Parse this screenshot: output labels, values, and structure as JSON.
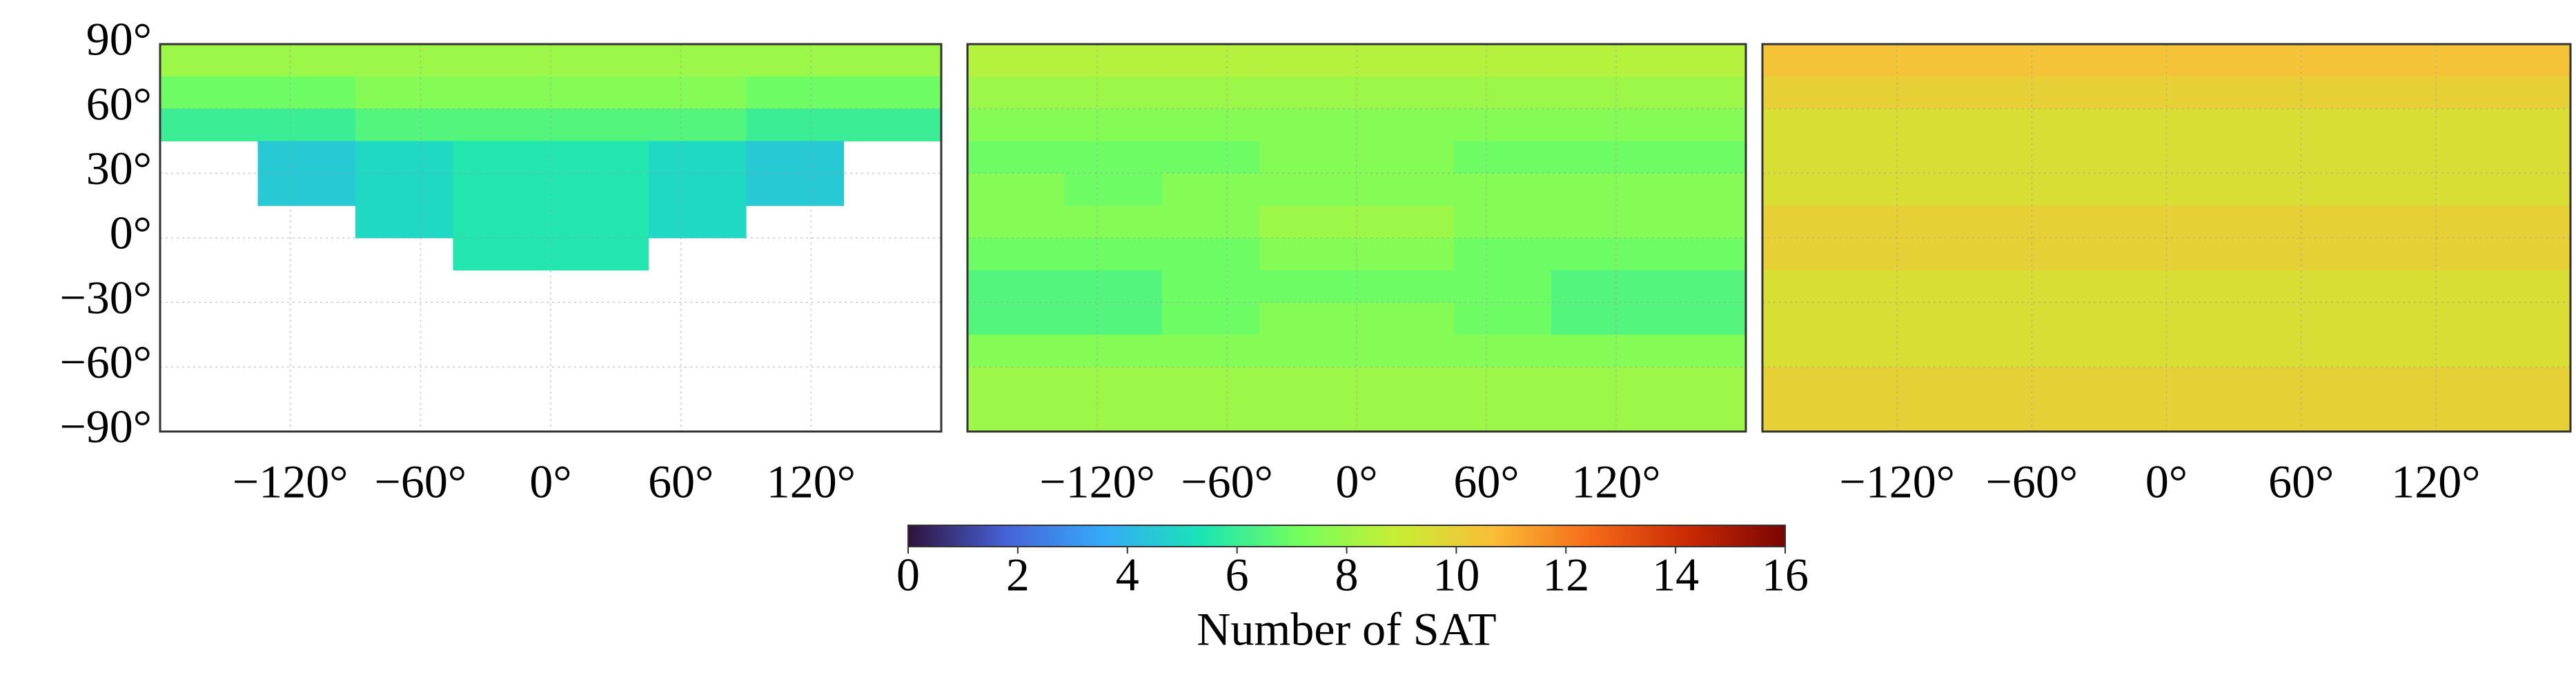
{
  "chart_data": [
    {
      "type": "heatmap",
      "lon": [
        -157.5,
        -112.5,
        -67.5,
        -22.5,
        22.5,
        67.5,
        112.5,
        157.5
      ],
      "lat": [
        82.5,
        67.5,
        52.5,
        37.5,
        22.5,
        7.5,
        -7.5,
        -22.5,
        -37.5,
        -52.5,
        -67.5,
        -82.5
      ],
      "values": [
        [
          8,
          8,
          8,
          8,
          8,
          8,
          8,
          8
        ],
        [
          7,
          7,
          7.5,
          7.5,
          7.5,
          7.5,
          7,
          7
        ],
        [
          6,
          6,
          6.5,
          6.5,
          6.5,
          6.5,
          6,
          6
        ],
        [
          null,
          4.5,
          5,
          5.5,
          5.5,
          5,
          4.5,
          null
        ],
        [
          null,
          4.5,
          5,
          5.5,
          5.5,
          5,
          4.5,
          null
        ],
        [
          null,
          null,
          5,
          5.5,
          5.5,
          5,
          null,
          null
        ],
        [
          null,
          null,
          null,
          5.5,
          5.5,
          null,
          null,
          null
        ],
        [
          null,
          null,
          null,
          null,
          null,
          null,
          null,
          null
        ],
        [
          null,
          null,
          null,
          null,
          null,
          null,
          null,
          null
        ],
        [
          null,
          null,
          null,
          null,
          null,
          null,
          null,
          null
        ],
        [
          null,
          null,
          null,
          null,
          null,
          null,
          null,
          null
        ],
        [
          null,
          null,
          null,
          null,
          null,
          null,
          null,
          null
        ]
      ],
      "xlim": [
        -180,
        180
      ],
      "ylim": [
        -90,
        90
      ],
      "xticks": [
        {
          "value": -120,
          "label": "−120°"
        },
        {
          "value": -60,
          "label": "−60°"
        },
        {
          "value": 0,
          "label": "0°"
        },
        {
          "value": 60,
          "label": "60°"
        },
        {
          "value": 120,
          "label": "120°"
        }
      ],
      "yticks": [
        {
          "value": 90,
          "label": "90°"
        },
        {
          "value": 60,
          "label": "60°"
        },
        {
          "value": 30,
          "label": "30°"
        },
        {
          "value": 0,
          "label": "0°"
        },
        {
          "value": -30,
          "label": "−30°"
        },
        {
          "value": -60,
          "label": "−60°"
        },
        {
          "value": -90,
          "label": "−90°"
        }
      ],
      "show_ytick_labels": true,
      "grid": true
    },
    {
      "type": "heatmap",
      "lon": [
        -157.5,
        -112.5,
        -67.5,
        -22.5,
        22.5,
        67.5,
        112.5,
        157.5
      ],
      "lat": [
        82.5,
        67.5,
        52.5,
        37.5,
        22.5,
        7.5,
        -7.5,
        -22.5,
        -37.5,
        -52.5,
        -67.5,
        -82.5
      ],
      "values": [
        [
          8.5,
          8.5,
          8.5,
          8.5,
          8.5,
          8.5,
          8.5,
          8.5
        ],
        [
          8,
          8,
          8,
          8,
          8,
          8,
          8,
          8
        ],
        [
          7.5,
          7.5,
          7.5,
          7.5,
          7.5,
          7.5,
          7.5,
          7.5
        ],
        [
          7,
          7,
          7,
          7.5,
          7.5,
          7,
          7,
          7
        ],
        [
          7.5,
          7,
          7.5,
          7.5,
          7.5,
          7.5,
          7.5,
          7.5
        ],
        [
          7.5,
          7.5,
          7.5,
          8,
          8,
          7.5,
          7.5,
          7.5
        ],
        [
          7,
          7,
          7,
          7.5,
          7.5,
          7,
          7,
          7
        ],
        [
          6.5,
          6.5,
          7,
          7,
          7,
          7,
          6.5,
          6.5
        ],
        [
          6.5,
          6.5,
          7,
          7.5,
          7.5,
          7,
          6.5,
          6.5
        ],
        [
          7.5,
          7.5,
          7.5,
          7.5,
          7.5,
          7.5,
          7.5,
          7.5
        ],
        [
          8,
          8,
          8,
          8,
          8,
          8,
          8,
          8
        ],
        [
          8,
          8,
          8,
          8,
          8,
          8,
          8,
          8
        ]
      ],
      "xlim": [
        -180,
        180
      ],
      "ylim": [
        -90,
        90
      ],
      "xticks": [
        {
          "value": -120,
          "label": "−120°"
        },
        {
          "value": -60,
          "label": "−60°"
        },
        {
          "value": 0,
          "label": "0°"
        },
        {
          "value": 60,
          "label": "60°"
        },
        {
          "value": 120,
          "label": "120°"
        }
      ],
      "yticks": [
        90,
        60,
        30,
        0,
        -30,
        -60,
        -90
      ],
      "show_ytick_labels": false,
      "grid": true
    },
    {
      "type": "heatmap",
      "lon": [
        -157.5,
        -112.5,
        -67.5,
        -22.5,
        22.5,
        67.5,
        112.5,
        157.5
      ],
      "lat": [
        82.5,
        67.5,
        52.5,
        37.5,
        22.5,
        7.5,
        -7.5,
        -22.5,
        -37.5,
        -52.5,
        -67.5,
        -82.5
      ],
      "values": [
        [
          10.5,
          10.5,
          10.5,
          10.5,
          10.5,
          10.5,
          10.5,
          10.5
        ],
        [
          10,
          10,
          10,
          10,
          10,
          10,
          10,
          10
        ],
        [
          9.5,
          9.5,
          9.5,
          9.5,
          9.5,
          9.5,
          9.5,
          9.5
        ],
        [
          9.5,
          9.5,
          9.5,
          9.5,
          9.5,
          9.5,
          9.5,
          9.5
        ],
        [
          9.5,
          9.5,
          9.5,
          9.5,
          9.5,
          9.5,
          9.5,
          9.5
        ],
        [
          10,
          10,
          10,
          10,
          10,
          10,
          10,
          10
        ],
        [
          10,
          10,
          10,
          10,
          10,
          10,
          10,
          10
        ],
        [
          9.5,
          9.5,
          9.5,
          9.5,
          9.5,
          9.5,
          9.5,
          9.5
        ],
        [
          9.5,
          9.5,
          9.5,
          9.5,
          9.5,
          9.5,
          9.5,
          9.5
        ],
        [
          9.5,
          9.5,
          9.5,
          9.5,
          9.5,
          9.5,
          9.5,
          9.5
        ],
        [
          10,
          10,
          10,
          10,
          10,
          10,
          10,
          10
        ],
        [
          10,
          10,
          10,
          10,
          10,
          10,
          10,
          10
        ]
      ],
      "xlim": [
        -180,
        180
      ],
      "ylim": [
        -90,
        90
      ],
      "xticks": [
        {
          "value": -120,
          "label": "−120°"
        },
        {
          "value": -60,
          "label": "−60°"
        },
        {
          "value": 0,
          "label": "0°"
        },
        {
          "value": 60,
          "label": "60°"
        },
        {
          "value": 120,
          "label": "120°"
        }
      ],
      "yticks": [
        90,
        60,
        30,
        0,
        -30,
        -60,
        -90
      ],
      "show_ytick_labels": false,
      "grid": true
    }
  ],
  "colorbar": {
    "label": "Number of SAT",
    "lim": [
      0,
      16
    ],
    "ticks": [
      0,
      2,
      4,
      6,
      8,
      10,
      12,
      14,
      16
    ],
    "colors": [
      "#30123b",
      "#4662d7",
      "#36aaf9",
      "#1ae4b6",
      "#72fe5e",
      "#c7ef34",
      "#fabe37",
      "#f66b19",
      "#ca2a04",
      "#7a0403"
    ]
  }
}
